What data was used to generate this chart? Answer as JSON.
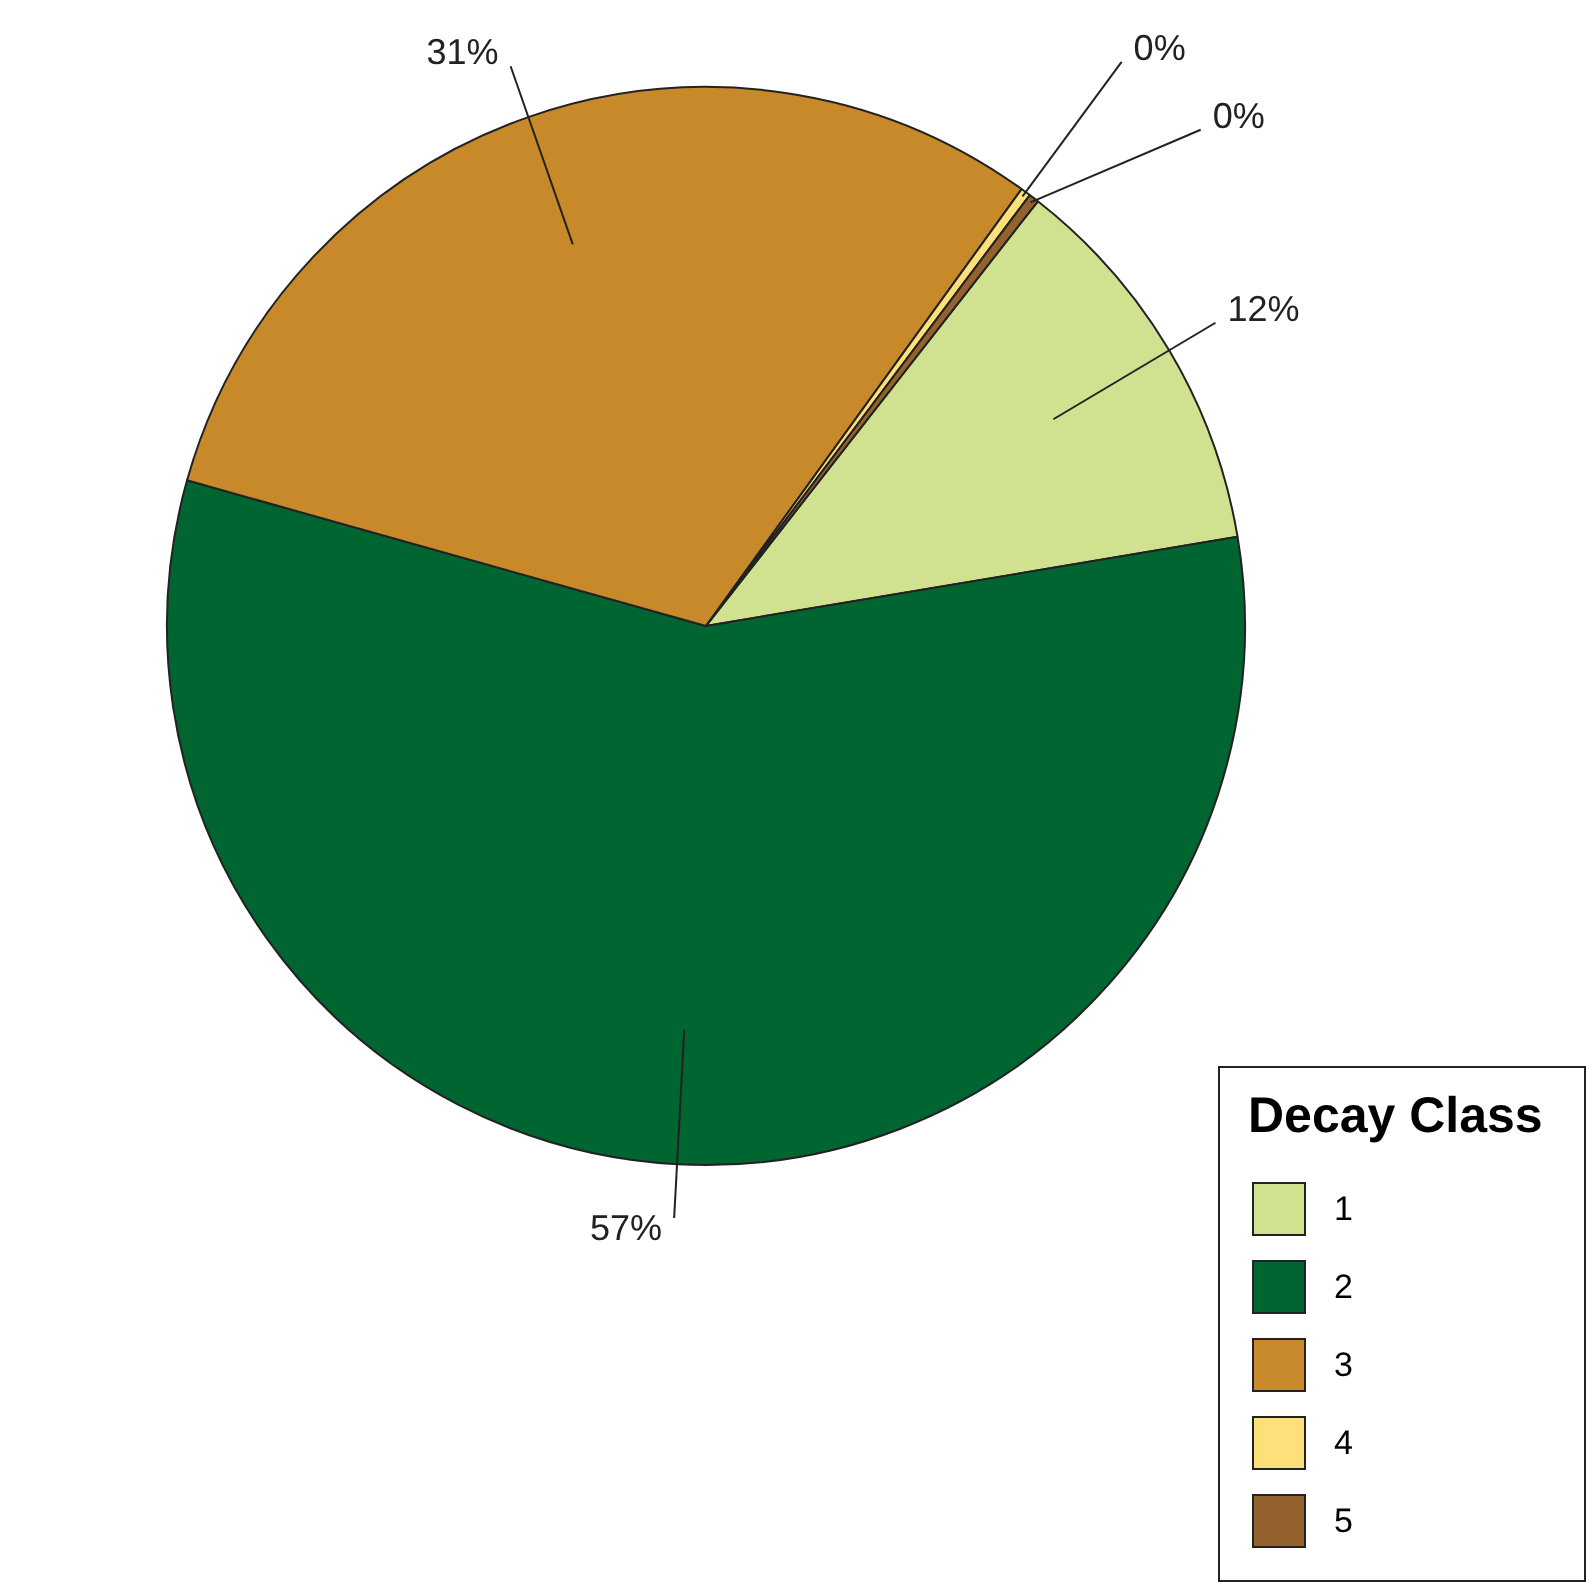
{
  "chart_data": {
    "type": "pie",
    "legend_title": "Decay Class",
    "legend": "bottom right",
    "categories": [
      "1",
      "2",
      "3",
      "4",
      "5"
    ],
    "values": [
      11.8,
      57,
      30.6,
      0.3,
      0.3
    ],
    "value_labels": [
      "12%",
      "57%",
      "31%",
      "0%",
      "0%"
    ],
    "colors": [
      "#d0e290",
      "#006530",
      "#c8892a",
      "#fde07a",
      "#93622d"
    ]
  }
}
